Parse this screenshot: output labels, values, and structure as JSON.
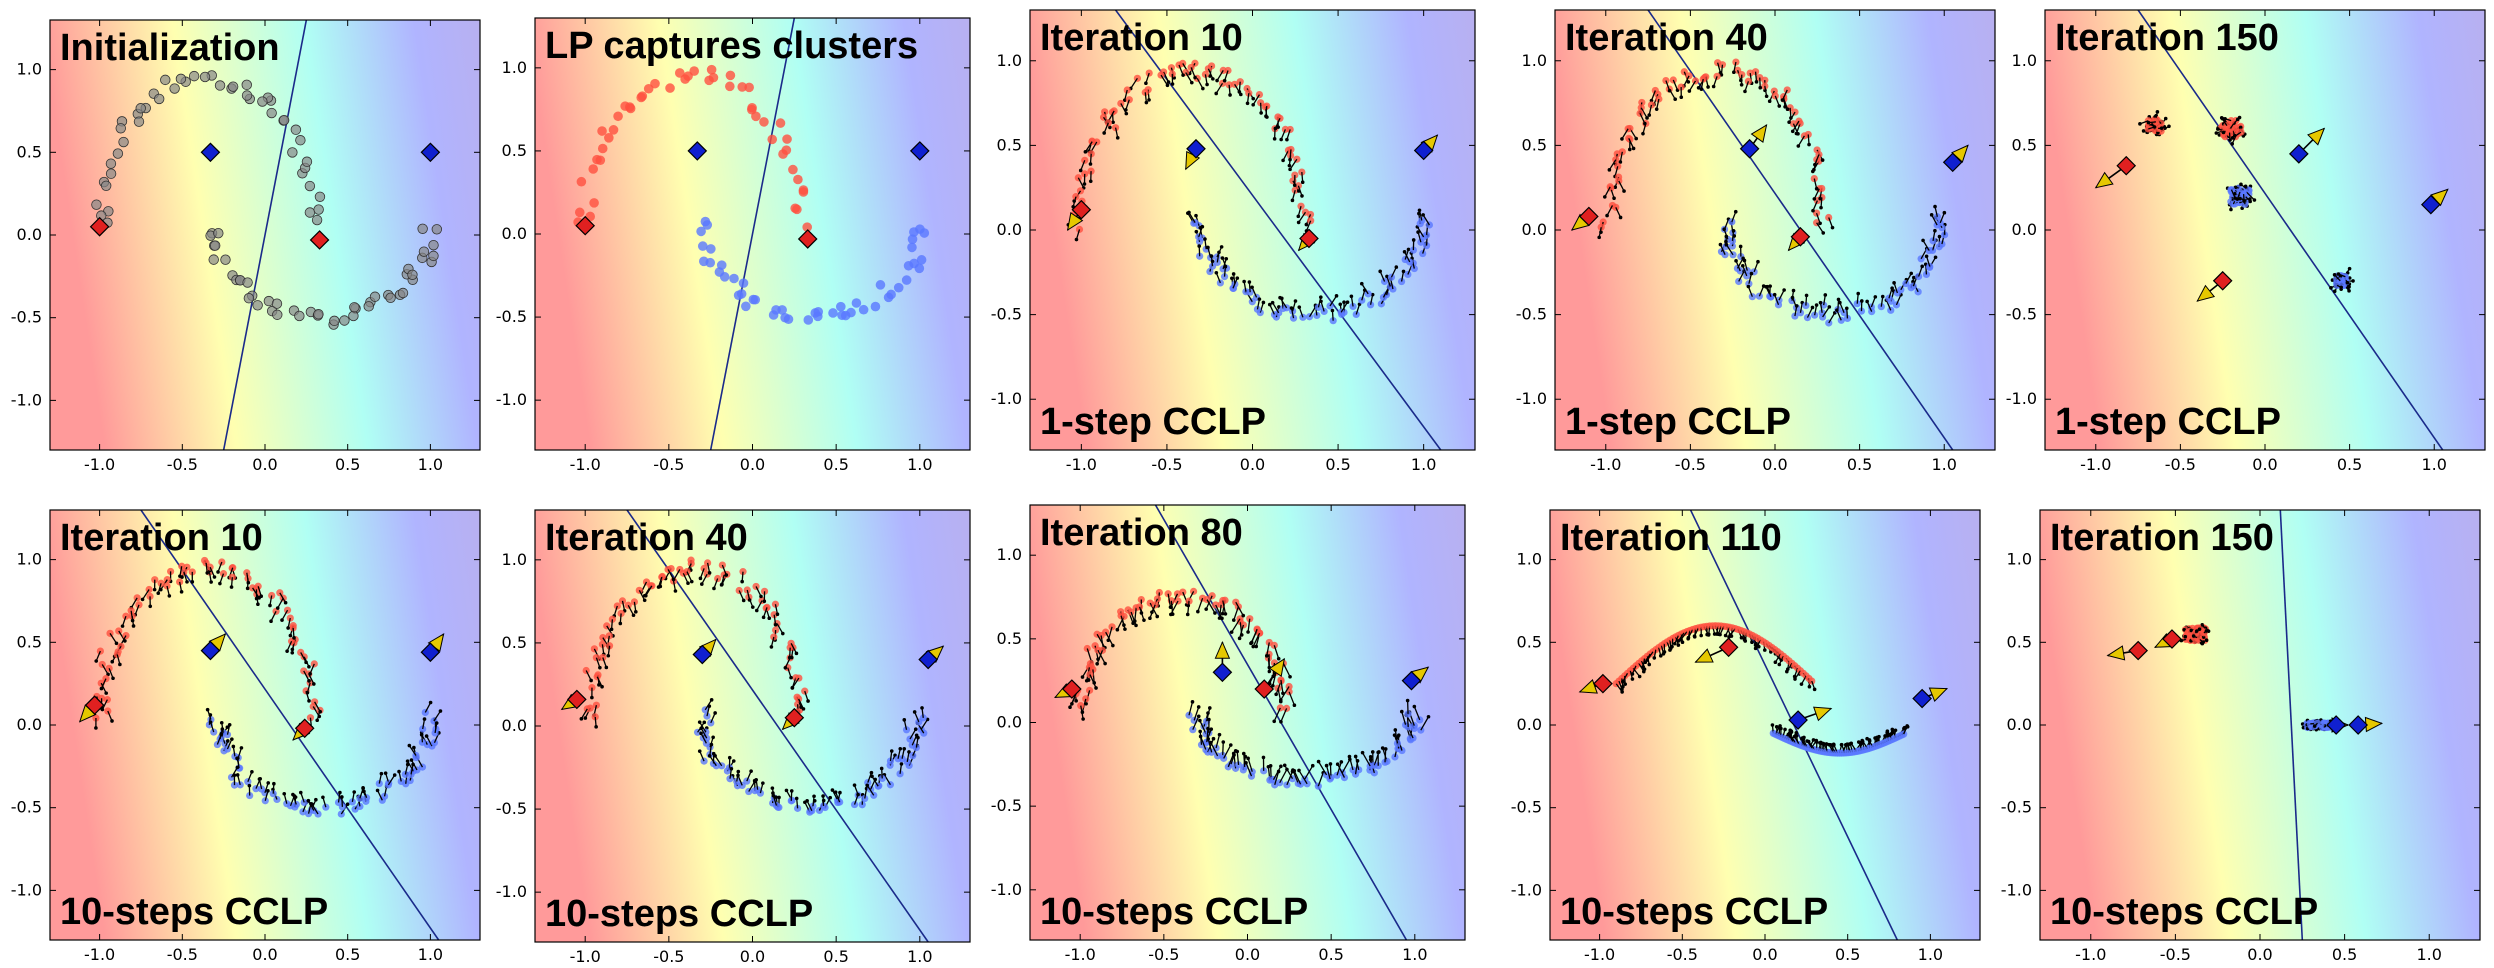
{
  "figure": {
    "colors": {
      "red_cluster": "#ff5040",
      "blue_cluster": "#5a78ff",
      "unlabeled": "#888888",
      "red_label": "#e02020",
      "blue_label": "#1020d0",
      "arrow_head": "#e6c800",
      "boundary": "#1a2a8a"
    }
  },
  "chart_data": [
    {
      "id": "p1",
      "type": "scatter",
      "title": "Initialization",
      "note": "",
      "stage": "init",
      "points": "gray",
      "xlim": [
        -1.3,
        1.3
      ],
      "ylim": [
        -1.3,
        1.3
      ],
      "xticks": [
        "-1.0",
        "-0.5",
        "0.0",
        "0.5",
        "1.0"
      ],
      "yticks": [
        "1.0",
        "0.5",
        "0.0",
        "-0.5",
        "-1.0"
      ],
      "boundary": [
        [
          -0.25,
          -1.3
        ],
        [
          0.25,
          1.3
        ]
      ],
      "labeled": [
        {
          "x": -1.0,
          "y": 0.05,
          "cls": "red"
        },
        {
          "x": 0.33,
          "y": -0.03,
          "cls": "red"
        },
        {
          "x": -0.33,
          "y": 0.5,
          "cls": "blue"
        },
        {
          "x": 1.0,
          "y": 0.5,
          "cls": "blue"
        }
      ],
      "label_arrows": []
    },
    {
      "id": "p2",
      "type": "scatter",
      "title": "LP captures clusters",
      "note": "",
      "stage": "init",
      "points": "colored",
      "xlim": [
        -1.3,
        1.3
      ],
      "ylim": [
        -1.3,
        1.3
      ],
      "xticks": [
        "-1.0",
        "-0.5",
        "0.0",
        "0.5",
        "1.0"
      ],
      "yticks": [
        "1.0",
        "0.5",
        "0.0",
        "-0.5",
        "-1.0"
      ],
      "boundary": [
        [
          -0.25,
          -1.3
        ],
        [
          0.25,
          1.3
        ]
      ],
      "labeled": [
        {
          "x": -1.0,
          "y": 0.05,
          "cls": "red"
        },
        {
          "x": 0.33,
          "y": -0.03,
          "cls": "red"
        },
        {
          "x": -0.33,
          "y": 0.5,
          "cls": "blue"
        },
        {
          "x": 1.0,
          "y": 0.5,
          "cls": "blue"
        }
      ],
      "label_arrows": []
    },
    {
      "id": "p3",
      "type": "scatter",
      "title": "Iteration 10",
      "note": "1-step CCLP",
      "stage": "i10",
      "points": "arrows",
      "xlim": [
        -1.3,
        1.3
      ],
      "ylim": [
        -1.3,
        1.3
      ],
      "xticks": [
        "-1.0",
        "-0.5",
        "0.0",
        "0.5",
        "1.0"
      ],
      "yticks": [
        "1.0",
        "0.5",
        "0.0",
        "-0.5",
        "-1.0"
      ],
      "boundary": [
        [
          -0.8,
          1.3
        ],
        [
          1.1,
          -1.3
        ]
      ],
      "labeled": [
        {
          "x": -1.0,
          "y": 0.12,
          "cls": "red"
        },
        {
          "x": 0.33,
          "y": -0.05,
          "cls": "red"
        },
        {
          "x": -0.33,
          "y": 0.48,
          "cls": "blue"
        },
        {
          "x": 1.0,
          "y": 0.47,
          "cls": "blue"
        }
      ],
      "label_arrows": [
        [
          -1.0,
          0.12,
          -1.08,
          -0.0
        ],
        [
          0.33,
          -0.05,
          0.27,
          -0.12
        ],
        [
          -0.33,
          0.48,
          -0.39,
          0.36
        ],
        [
          1.0,
          0.47,
          1.08,
          0.56
        ]
      ]
    },
    {
      "id": "p4",
      "type": "scatter",
      "title": "Iteration 40",
      "note": "1-step CCLP",
      "stage": "i40",
      "points": "arrows",
      "xlim": [
        -1.3,
        1.3
      ],
      "ylim": [
        -1.3,
        1.3
      ],
      "xticks": [
        "-1.0",
        "-0.5",
        "0.0",
        "0.5",
        "1.0"
      ],
      "yticks": [
        "1.0",
        "0.5",
        "0.0",
        "-0.5",
        "-1.0"
      ],
      "boundary": [
        [
          -0.75,
          1.3
        ],
        [
          1.05,
          -1.3
        ]
      ],
      "labeled": [
        {
          "x": -1.1,
          "y": 0.08,
          "cls": "red"
        },
        {
          "x": 0.15,
          "y": -0.04,
          "cls": "red"
        },
        {
          "x": -0.15,
          "y": 0.48,
          "cls": "blue"
        },
        {
          "x": 1.05,
          "y": 0.4,
          "cls": "blue"
        }
      ],
      "label_arrows": [
        [
          -1.1,
          0.08,
          -1.2,
          -0.0
        ],
        [
          0.15,
          -0.04,
          0.08,
          -0.12
        ],
        [
          -0.15,
          0.48,
          -0.05,
          0.62
        ],
        [
          1.05,
          0.4,
          1.14,
          0.5
        ]
      ]
    },
    {
      "id": "p5",
      "type": "scatter",
      "title": "Iteration 150",
      "note": "1-step CCLP",
      "stage": "i150a",
      "points": "arrows",
      "xlim": [
        -1.3,
        1.3
      ],
      "ylim": [
        -1.3,
        1.3
      ],
      "xticks": [
        "-1.0",
        "-0.5",
        "0.0",
        "0.5",
        "1.0"
      ],
      "yticks": [
        "1.0",
        "0.5",
        "0.0",
        "-0.5",
        "-1.0"
      ],
      "boundary": [
        [
          -0.75,
          1.3
        ],
        [
          1.05,
          -1.3
        ]
      ],
      "labeled": [
        {
          "x": -0.82,
          "y": 0.38,
          "cls": "red"
        },
        {
          "x": -0.25,
          "y": -0.3,
          "cls": "red"
        },
        {
          "x": 0.2,
          "y": 0.45,
          "cls": "blue"
        },
        {
          "x": 0.98,
          "y": 0.15,
          "cls": "blue"
        }
      ],
      "label_arrows": [
        [
          -0.82,
          0.38,
          -1.0,
          0.25
        ],
        [
          -0.25,
          -0.3,
          -0.4,
          -0.42
        ],
        [
          0.2,
          0.45,
          0.35,
          0.6
        ],
        [
          0.98,
          0.15,
          1.08,
          0.24
        ]
      ]
    },
    {
      "id": "p6",
      "type": "scatter",
      "title": "Iteration 10",
      "note": "10-steps CCLP",
      "stage": "i10",
      "points": "arrows",
      "xlim": [
        -1.3,
        1.3
      ],
      "ylim": [
        -1.3,
        1.3
      ],
      "xticks": [
        "-1.0",
        "-0.5",
        "0.0",
        "0.5",
        "1.0"
      ],
      "yticks": [
        "1.0",
        "0.5",
        "0.0",
        "-0.5",
        "-1.0"
      ],
      "boundary": [
        [
          -0.75,
          1.3
        ],
        [
          1.05,
          -1.3
        ]
      ],
      "labeled": [
        {
          "x": -1.03,
          "y": 0.12,
          "cls": "red"
        },
        {
          "x": 0.24,
          "y": -0.02,
          "cls": "red"
        },
        {
          "x": -0.33,
          "y": 0.45,
          "cls": "blue"
        },
        {
          "x": 1.0,
          "y": 0.44,
          "cls": "blue"
        }
      ],
      "label_arrows": [
        [
          -1.03,
          0.12,
          -1.12,
          0.02
        ],
        [
          0.24,
          -0.02,
          0.17,
          -0.09
        ],
        [
          -0.33,
          0.45,
          -0.24,
          0.55
        ],
        [
          1.0,
          0.44,
          1.08,
          0.55
        ]
      ]
    },
    {
      "id": "p7",
      "type": "scatter",
      "title": "Iteration 40",
      "note": "10-steps CCLP",
      "stage": "i40",
      "points": "arrows",
      "xlim": [
        -1.3,
        1.3
      ],
      "ylim": [
        -1.3,
        1.3
      ],
      "xticks": [
        "-1.0",
        "-0.5",
        "0.0",
        "0.5",
        "1.0"
      ],
      "yticks": [
        "1.0",
        "0.5",
        "0.0",
        "-0.5",
        "-1.0"
      ],
      "boundary": [
        [
          -0.75,
          1.3
        ],
        [
          1.05,
          -1.3
        ]
      ],
      "labeled": [
        {
          "x": -1.05,
          "y": 0.16,
          "cls": "red"
        },
        {
          "x": 0.25,
          "y": 0.05,
          "cls": "red"
        },
        {
          "x": -0.3,
          "y": 0.43,
          "cls": "blue"
        },
        {
          "x": 1.05,
          "y": 0.4,
          "cls": "blue"
        }
      ],
      "label_arrows": [
        [
          -1.05,
          0.16,
          -1.14,
          0.1
        ],
        [
          0.25,
          0.05,
          0.18,
          -0.02
        ],
        [
          -0.3,
          0.43,
          -0.22,
          0.52
        ],
        [
          1.05,
          0.4,
          1.14,
          0.48
        ]
      ]
    },
    {
      "id": "p8",
      "type": "scatter",
      "title": "Iteration 80",
      "note": "10-steps CCLP",
      "stage": "i80",
      "points": "arrows",
      "xlim": [
        -1.3,
        1.3
      ],
      "ylim": [
        -1.3,
        1.3
      ],
      "xticks": [
        "-1.0",
        "-0.5",
        "0.0",
        "0.5",
        "1.0"
      ],
      "yticks": [
        "1.0",
        "0.5",
        "0.0",
        "-0.5",
        "-1.0"
      ],
      "boundary": [
        [
          -0.55,
          1.3
        ],
        [
          0.95,
          -1.3
        ]
      ],
      "labeled": [
        {
          "x": -1.05,
          "y": 0.2,
          "cls": "red"
        },
        {
          "x": 0.1,
          "y": 0.2,
          "cls": "red"
        },
        {
          "x": -0.15,
          "y": 0.3,
          "cls": "blue"
        },
        {
          "x": 0.98,
          "y": 0.25,
          "cls": "blue"
        }
      ],
      "label_arrows": [
        [
          -1.05,
          0.2,
          -1.15,
          0.15
        ],
        [
          0.1,
          0.2,
          0.22,
          0.38
        ],
        [
          -0.15,
          0.3,
          -0.15,
          0.48
        ],
        [
          0.98,
          0.25,
          1.08,
          0.33
        ]
      ]
    },
    {
      "id": "p9",
      "type": "scatter",
      "title": "Iteration 110",
      "note": "10-steps CCLP",
      "stage": "i110",
      "points": "arrows",
      "xlim": [
        -1.3,
        1.3
      ],
      "ylim": [
        -1.3,
        1.3
      ],
      "xticks": [
        "-1.0",
        "-0.5",
        "0.0",
        "0.5",
        "1.0"
      ],
      "yticks": [
        "1.0",
        "0.5",
        "0.0",
        "-0.5",
        "-1.0"
      ],
      "boundary": [
        [
          -0.45,
          1.3
        ],
        [
          0.8,
          -1.3
        ]
      ],
      "labeled": [
        {
          "x": -0.98,
          "y": 0.25,
          "cls": "red"
        },
        {
          "x": -0.22,
          "y": 0.47,
          "cls": "red"
        },
        {
          "x": 0.2,
          "y": 0.03,
          "cls": "blue"
        },
        {
          "x": 0.95,
          "y": 0.16,
          "cls": "blue"
        }
      ],
      "label_arrows": [
        [
          -0.98,
          0.25,
          -1.12,
          0.2
        ],
        [
          -0.22,
          0.47,
          -0.42,
          0.38
        ],
        [
          0.2,
          0.03,
          0.4,
          0.1
        ],
        [
          0.95,
          0.16,
          1.1,
          0.22
        ]
      ]
    },
    {
      "id": "p10",
      "type": "scatter",
      "title": "Iteration 150",
      "note": "10-steps CCLP",
      "stage": "i150b",
      "points": "arrows",
      "xlim": [
        -1.3,
        1.3
      ],
      "ylim": [
        -1.3,
        1.3
      ],
      "xticks": [
        "-1.0",
        "-0.5",
        "0.0",
        "0.5",
        "1.0"
      ],
      "yticks": [
        "1.0",
        "0.5",
        "0.0",
        "-0.5",
        "-1.0"
      ],
      "boundary": [
        [
          0.12,
          1.3
        ],
        [
          0.25,
          -1.3
        ]
      ],
      "labeled": [
        {
          "x": -0.72,
          "y": 0.45,
          "cls": "red"
        },
        {
          "x": -0.52,
          "y": 0.52,
          "cls": "red"
        },
        {
          "x": 0.45,
          "y": 0.0,
          "cls": "blue"
        },
        {
          "x": 0.58,
          "y": 0.0,
          "cls": "blue"
        }
      ],
      "label_arrows": [
        [
          -0.72,
          0.45,
          -0.9,
          0.42
        ],
        [
          -0.52,
          0.52,
          -0.62,
          0.47
        ],
        [
          0.58,
          0.0,
          0.72,
          0.01
        ],
        [
          0.45,
          0.0,
          0.52,
          0.0
        ]
      ]
    }
  ]
}
